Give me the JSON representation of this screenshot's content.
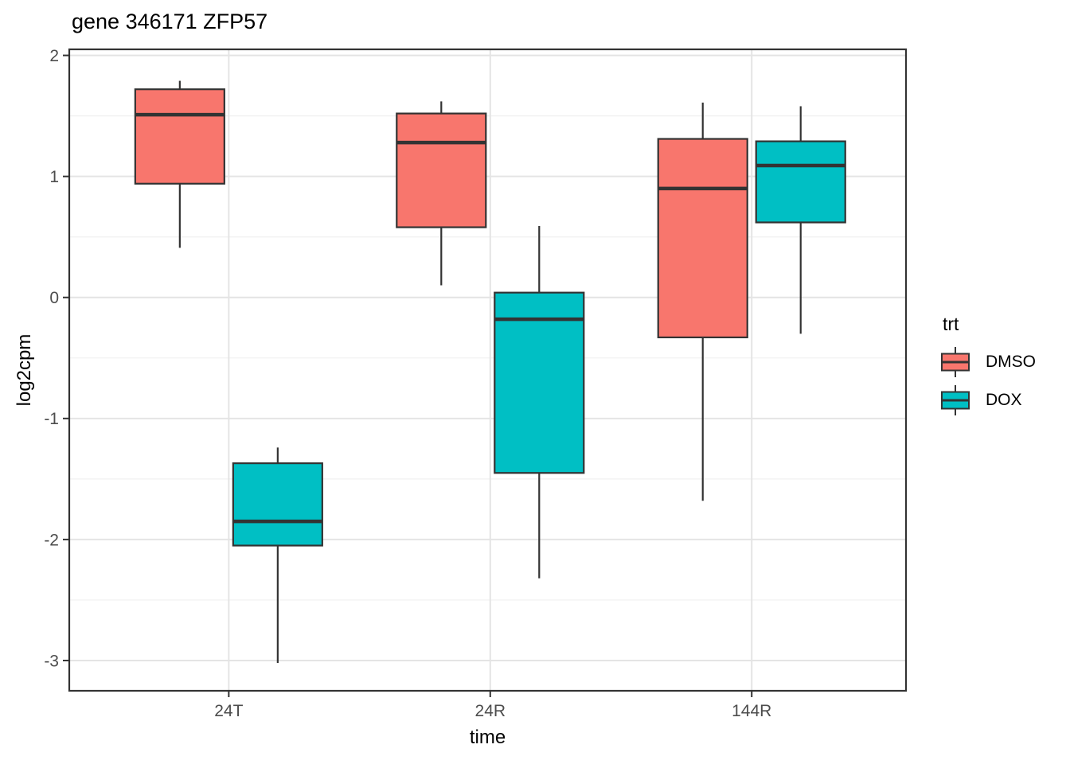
{
  "title": "gene 346171 ZFP57",
  "axes": {
    "x_label": "time",
    "y_label": "log2cpm",
    "x_ticks": [
      "24T",
      "24R",
      "144R"
    ],
    "y_ticks": [
      "2",
      "1",
      "0",
      "-1",
      "-2",
      "-3"
    ]
  },
  "legend": {
    "title": "trt",
    "items": [
      {
        "label": "DMSO",
        "color": "#F8766D"
      },
      {
        "label": "DOX",
        "color": "#00BFC4"
      }
    ]
  },
  "colors": {
    "dmso_fill": "#F8766D",
    "dox_fill": "#00BFC4",
    "box_line": "#333333",
    "grid_major": "#E4E4E4",
    "grid_minor": "#F0F0F0",
    "panel_border": "#333333",
    "tick_label": "#4D4D4D",
    "panel_background": "#FFFFFF"
  },
  "chart_data": {
    "type": "boxplot",
    "title": "gene 346171 ZFP57",
    "xlabel": "time",
    "ylabel": "log2cpm",
    "categories": [
      "24T",
      "24R",
      "144R"
    ],
    "ylim": [
      -3.25,
      2.05
    ],
    "y_major_ticks": [
      2,
      1,
      0,
      -1,
      -2,
      -3
    ],
    "y_minor_ticks": [
      1.5,
      0.5,
      -0.5,
      -1.5,
      -2.5
    ],
    "grid": true,
    "legend_title": "trt",
    "legend_position": "right",
    "series": [
      {
        "name": "DMSO",
        "color": "#F8766D",
        "boxes": [
          {
            "category": "24T",
            "whisker_low": 0.41,
            "q1": 0.94,
            "median": 1.51,
            "q3": 1.72,
            "whisker_high": 1.79
          },
          {
            "category": "24R",
            "whisker_low": 0.1,
            "q1": 0.58,
            "median": 1.28,
            "q3": 1.52,
            "whisker_high": 1.62
          },
          {
            "category": "144R",
            "whisker_low": -1.68,
            "q1": -0.33,
            "median": 0.9,
            "q3": 1.31,
            "whisker_high": 1.61
          }
        ]
      },
      {
        "name": "DOX",
        "color": "#00BFC4",
        "boxes": [
          {
            "category": "24T",
            "whisker_low": -3.02,
            "q1": -2.05,
            "median": -1.85,
            "q3": -1.37,
            "whisker_high": -1.24
          },
          {
            "category": "24R",
            "whisker_low": -2.32,
            "q1": -1.45,
            "median": -0.18,
            "q3": 0.04,
            "whisker_high": 0.59
          },
          {
            "category": "144R",
            "whisker_low": -0.3,
            "q1": 0.62,
            "median": 1.09,
            "q3": 1.29,
            "whisker_high": 1.58
          }
        ]
      }
    ]
  }
}
